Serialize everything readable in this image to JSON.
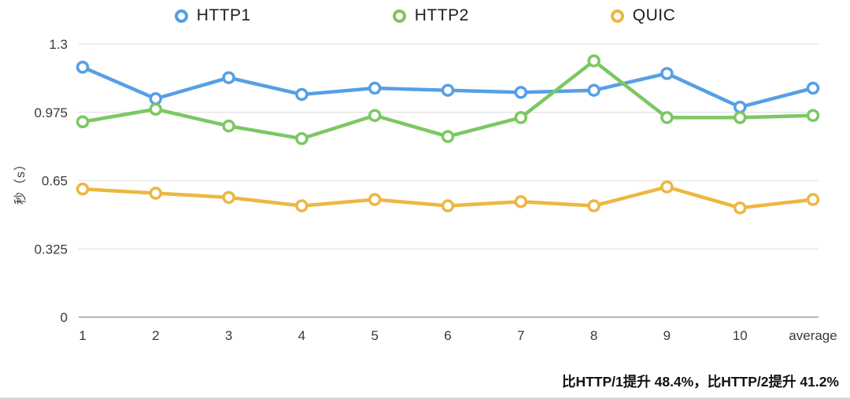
{
  "chart_data": {
    "type": "line",
    "title": "",
    "ylabel": "秒（s）",
    "xlabel": "",
    "ylim": [
      0,
      1.3
    ],
    "yticks": [
      0,
      0.325,
      0.65,
      0.975,
      1.3
    ],
    "ytick_labels": [
      "0",
      "0.325",
      "0.65",
      "0.975",
      "1.3"
    ],
    "grid": true,
    "legend_position": "top",
    "categories": [
      "1",
      "2",
      "3",
      "4",
      "5",
      "6",
      "7",
      "8",
      "9",
      "10",
      "average"
    ],
    "series": [
      {
        "name": "HTTP1",
        "color": "#569FE5",
        "marker": "circle-outline-icon",
        "values": [
          1.19,
          1.04,
          1.14,
          1.06,
          1.09,
          1.08,
          1.07,
          1.08,
          1.16,
          1.0,
          1.09
        ]
      },
      {
        "name": "HTTP2",
        "color": "#7BC862",
        "marker": "circle-outline-icon",
        "values": [
          0.93,
          0.99,
          0.91,
          0.85,
          0.96,
          0.86,
          0.95,
          1.22,
          0.95,
          0.95,
          0.96
        ]
      },
      {
        "name": "QUIC",
        "color": "#EDB740",
        "marker": "circle-outline-icon",
        "values": [
          0.61,
          0.59,
          0.57,
          0.53,
          0.56,
          0.53,
          0.55,
          0.53,
          0.62,
          0.52,
          0.56
        ]
      }
    ],
    "annotation": "比HTTP/1提升 48.4%，比HTTP/2提升 41.2%",
    "colors": {
      "grid_line": "#e3e3e3",
      "zero_axis": "#9b9b9b",
      "tick_text": "#3a3a3c",
      "annotation_text": "#111111"
    }
  }
}
